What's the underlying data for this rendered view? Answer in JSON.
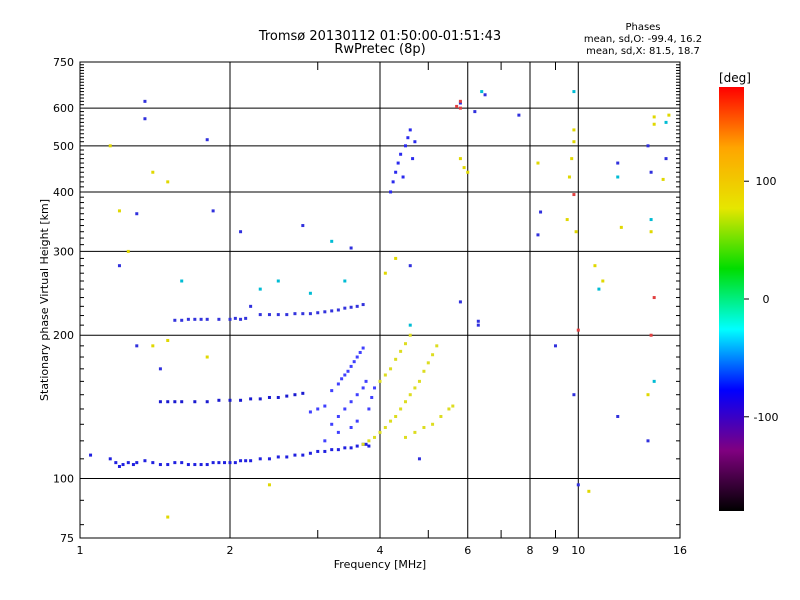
{
  "chart_data": {
    "type": "scatter",
    "title": "Tromsø 20130112 01:50:00-01:51:43",
    "subtitle": "RwPretec (8p)",
    "xlabel": "Frequency [MHz]",
    "ylabel": "Stationary phase Virtual Height [km]",
    "x_scale": "log",
    "y_scale": "log",
    "xlim": [
      1,
      16
    ],
    "ylim": [
      75,
      750
    ],
    "x_ticks": [
      1,
      2,
      4,
      6,
      8,
      10,
      16
    ],
    "y_ticks": [
      75,
      100,
      200,
      300,
      400,
      500,
      600,
      750
    ],
    "x_minor_grid": [
      3,
      5,
      7,
      9
    ],
    "grid": true,
    "phase_info": {
      "heading": "Phases",
      "line1": "mean, sd,O: -99.4, 16.2",
      "line2": "mean, sd,X:  81.5, 18.7"
    },
    "colorbar": {
      "label": "[deg]",
      "range": [
        -180,
        180
      ],
      "ticks": [
        100,
        0,
        -100
      ],
      "colors": [
        "#ff0000",
        "#ffa500",
        "#e6e600",
        "#00dd00",
        "#00ffff",
        "#0000ff",
        "#800080",
        "#000000"
      ]
    },
    "series": [
      {
        "points": [
          [
            1.05,
            112
          ],
          [
            1.15,
            110
          ],
          [
            1.18,
            108
          ],
          [
            1.2,
            106
          ],
          [
            1.22,
            107
          ],
          [
            1.25,
            108
          ],
          [
            1.28,
            107
          ],
          [
            1.3,
            108
          ],
          [
            1.35,
            109
          ],
          [
            1.4,
            108
          ],
          [
            1.45,
            107
          ],
          [
            1.5,
            107
          ],
          [
            1.55,
            108
          ],
          [
            1.6,
            108
          ],
          [
            1.65,
            107
          ],
          [
            1.7,
            107
          ],
          [
            1.75,
            107
          ],
          [
            1.8,
            107
          ],
          [
            1.85,
            108
          ],
          [
            1.9,
            108
          ],
          [
            1.95,
            108
          ],
          [
            2.0,
            108
          ],
          [
            2.05,
            108
          ],
          [
            2.1,
            109
          ],
          [
            2.15,
            109
          ],
          [
            2.2,
            109
          ],
          [
            2.3,
            110
          ],
          [
            2.4,
            110
          ],
          [
            2.5,
            111
          ],
          [
            2.6,
            111
          ],
          [
            2.7,
            112
          ],
          [
            2.8,
            112
          ],
          [
            2.9,
            113
          ],
          [
            3.0,
            114
          ],
          [
            3.1,
            114
          ],
          [
            3.2,
            115
          ],
          [
            3.3,
            115
          ],
          [
            3.4,
            116
          ],
          [
            3.5,
            116
          ],
          [
            3.6,
            117
          ],
          [
            3.7,
            118
          ],
          [
            3.75,
            118
          ],
          [
            3.8,
            117
          ]
        ],
        "color": "#2020e0"
      },
      {
        "points": [
          [
            1.45,
            145
          ],
          [
            1.5,
            145
          ],
          [
            1.55,
            145
          ],
          [
            1.6,
            145
          ],
          [
            1.7,
            145
          ],
          [
            1.8,
            145
          ],
          [
            1.9,
            146
          ],
          [
            2.0,
            146
          ],
          [
            2.1,
            146
          ],
          [
            2.2,
            147
          ],
          [
            2.3,
            147
          ],
          [
            2.4,
            148
          ],
          [
            2.5,
            148
          ],
          [
            2.6,
            149
          ],
          [
            2.7,
            150
          ],
          [
            2.8,
            151
          ]
        ],
        "color": "#1a1ad0"
      },
      {
        "points": [
          [
            1.55,
            215
          ],
          [
            1.6,
            215
          ],
          [
            1.65,
            216
          ],
          [
            1.7,
            216
          ],
          [
            1.75,
            216
          ],
          [
            1.8,
            216
          ],
          [
            1.9,
            216
          ],
          [
            2.0,
            216
          ],
          [
            2.05,
            217
          ],
          [
            2.1,
            216
          ],
          [
            2.15,
            217
          ],
          [
            2.3,
            221
          ],
          [
            2.4,
            221
          ],
          [
            2.5,
            221
          ],
          [
            2.6,
            221
          ],
          [
            2.7,
            222
          ],
          [
            2.8,
            222
          ],
          [
            2.9,
            222
          ],
          [
            3.0,
            223
          ],
          [
            3.1,
            224
          ],
          [
            3.2,
            225
          ],
          [
            3.3,
            226
          ],
          [
            3.4,
            228
          ],
          [
            3.5,
            229
          ],
          [
            3.6,
            230
          ],
          [
            3.7,
            232
          ]
        ],
        "color": "#3333dd"
      },
      {
        "points": [
          [
            3.2,
            153
          ],
          [
            3.3,
            158
          ],
          [
            3.35,
            162
          ],
          [
            3.4,
            165
          ],
          [
            3.45,
            168
          ],
          [
            3.5,
            172
          ],
          [
            3.55,
            176
          ],
          [
            3.6,
            180
          ],
          [
            3.65,
            184
          ],
          [
            3.7,
            188
          ],
          [
            3.2,
            130
          ],
          [
            3.3,
            135
          ],
          [
            3.4,
            140
          ],
          [
            3.5,
            145
          ],
          [
            3.6,
            150
          ],
          [
            3.7,
            155
          ],
          [
            3.75,
            160
          ],
          [
            3.1,
            120
          ],
          [
            3.3,
            125
          ],
          [
            3.5,
            128
          ],
          [
            3.6,
            132
          ],
          [
            3.8,
            140
          ],
          [
            3.85,
            148
          ],
          [
            3.9,
            155
          ],
          [
            2.9,
            138
          ],
          [
            3.0,
            140
          ],
          [
            3.1,
            142
          ]
        ],
        "color": "#4040ff"
      },
      {
        "points": [
          [
            3.7,
            118
          ],
          [
            3.8,
            120
          ],
          [
            3.9,
            122
          ],
          [
            4.0,
            125
          ],
          [
            4.1,
            128
          ],
          [
            4.2,
            132
          ],
          [
            4.3,
            135
          ],
          [
            4.4,
            140
          ],
          [
            4.5,
            145
          ],
          [
            4.6,
            150
          ],
          [
            4.7,
            155
          ],
          [
            4.8,
            160
          ],
          [
            4.9,
            168
          ],
          [
            5.0,
            175
          ],
          [
            5.1,
            182
          ],
          [
            5.2,
            190
          ],
          [
            4.0,
            160
          ],
          [
            4.1,
            165
          ],
          [
            4.2,
            170
          ],
          [
            4.3,
            178
          ],
          [
            4.4,
            185
          ],
          [
            4.5,
            192
          ],
          [
            4.6,
            200
          ],
          [
            4.5,
            122
          ],
          [
            4.7,
            125
          ],
          [
            4.9,
            128
          ],
          [
            5.1,
            130
          ],
          [
            5.3,
            135
          ],
          [
            5.5,
            140
          ],
          [
            5.6,
            142
          ]
        ],
        "color": "#dddd20"
      },
      {
        "points": [
          [
            4.2,
            400
          ],
          [
            4.25,
            420
          ],
          [
            4.3,
            440
          ],
          [
            4.35,
            460
          ],
          [
            4.4,
            480
          ],
          [
            4.5,
            500
          ],
          [
            4.55,
            520
          ],
          [
            4.6,
            540
          ],
          [
            4.7,
            510
          ],
          [
            4.65,
            470
          ],
          [
            4.45,
            430
          ]
        ],
        "color": "#2a2aee"
      },
      {
        "points": [
          [
            1.35,
            620
          ],
          [
            1.35,
            570
          ],
          [
            1.8,
            515
          ],
          [
            1.3,
            360
          ],
          [
            1.85,
            365
          ],
          [
            2.1,
            330
          ],
          [
            2.8,
            340
          ],
          [
            1.2,
            280
          ],
          [
            2.2,
            230
          ],
          [
            1.45,
            170
          ],
          [
            1.3,
            190
          ],
          [
            3.5,
            305
          ],
          [
            5.8,
            615
          ],
          [
            6.5,
            640
          ],
          [
            6.2,
            590
          ],
          [
            7.6,
            580
          ],
          [
            8.4,
            363
          ],
          [
            8.3,
            325
          ],
          [
            9.0,
            190
          ],
          [
            9.8,
            150
          ],
          [
            10.0,
            97
          ],
          [
            12.0,
            460
          ],
          [
            13.8,
            500
          ],
          [
            14.0,
            440
          ],
          [
            15.0,
            470
          ],
          [
            13.8,
            120
          ],
          [
            12.0,
            135
          ],
          [
            6.3,
            214
          ],
          [
            6.3,
            210
          ],
          [
            5.8,
            235
          ],
          [
            4.6,
            280
          ],
          [
            4.8,
            110
          ]
        ],
        "color": "#3030dd"
      },
      {
        "points": [
          [
            1.2,
            365
          ],
          [
            1.25,
            300
          ],
          [
            1.4,
            440
          ],
          [
            1.5,
            420
          ],
          [
            1.15,
            500
          ],
          [
            2.4,
            97
          ],
          [
            1.5,
            83
          ],
          [
            9.8,
            540
          ],
          [
            9.8,
            510
          ],
          [
            9.7,
            470
          ],
          [
            9.5,
            350
          ],
          [
            9.9,
            330
          ],
          [
            10.8,
            280
          ],
          [
            11.2,
            260
          ],
          [
            14.2,
            575
          ],
          [
            14.2,
            555
          ],
          [
            14.8,
            425
          ],
          [
            14.0,
            330
          ],
          [
            10.5,
            94
          ],
          [
            5.8,
            470
          ],
          [
            5.9,
            450
          ],
          [
            6.0,
            440
          ],
          [
            1.4,
            190
          ],
          [
            1.8,
            180
          ],
          [
            1.5,
            195
          ],
          [
            4.1,
            270
          ],
          [
            4.3,
            290
          ],
          [
            8.3,
            460
          ],
          [
            9.6,
            430
          ],
          [
            13.8,
            150
          ],
          [
            15.2,
            580
          ],
          [
            12.2,
            337
          ]
        ],
        "color": "#e0d800"
      },
      {
        "points": [
          [
            1.6,
            260
          ],
          [
            2.3,
            250
          ],
          [
            2.5,
            260
          ],
          [
            3.4,
            260
          ],
          [
            2.9,
            245
          ],
          [
            4.6,
            210
          ],
          [
            6.4,
            650
          ],
          [
            9.8,
            650
          ],
          [
            14.0,
            350
          ],
          [
            15.0,
            560
          ],
          [
            12.0,
            430
          ],
          [
            11.0,
            250
          ],
          [
            14.2,
            160
          ],
          [
            3.2,
            315
          ]
        ],
        "color": "#00bcd4"
      },
      {
        "points": [
          [
            5.7,
            605
          ],
          [
            5.8,
            600
          ],
          [
            14.0,
            200
          ],
          [
            10.0,
            205
          ],
          [
            14.2,
            240
          ],
          [
            5.8,
            620
          ],
          [
            9.8,
            395
          ]
        ],
        "color": "#e04040"
      }
    ]
  }
}
